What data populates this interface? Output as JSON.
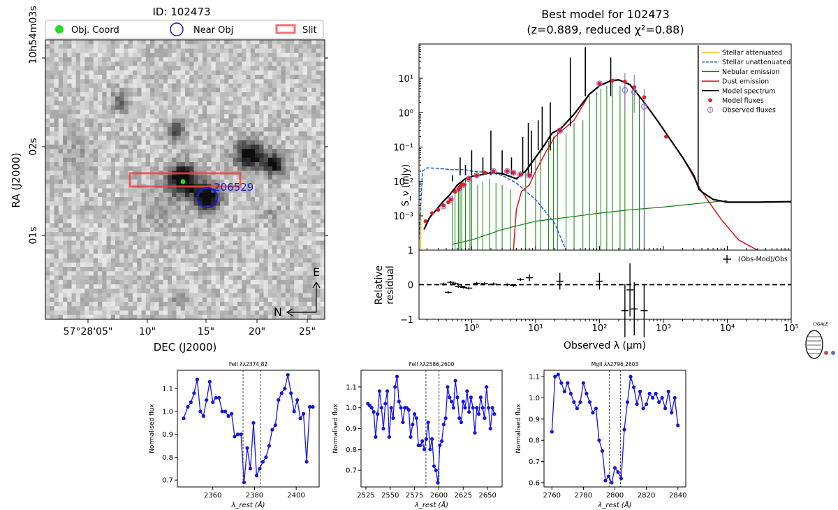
{
  "chart_data": [
    {
      "type": "image",
      "title": "ID: 102473",
      "xlabel": "DEC (J2000)",
      "ylabel": "RA (J2000)",
      "x_ticks": [
        "57°28'05\"",
        "10\"",
        "15\"",
        "20\"",
        "25\""
      ],
      "y_ticks": [
        "10h54m03s",
        "02s",
        "01s"
      ],
      "legend": [
        {
          "label": "Obj. Coord",
          "marker": "filled-circle",
          "color": "#00dd00"
        },
        {
          "label": "Near Obj",
          "marker": "open-circle",
          "color": "#1010d0"
        },
        {
          "label": "Slit",
          "marker": "rectangle",
          "color": "#f05050"
        }
      ],
      "near_object_label": "206529",
      "compass": {
        "east": "E",
        "north": "N"
      },
      "colormap": "gray_r"
    },
    {
      "type": "line",
      "title": "Best model for 102473",
      "subtitle": "(z=0.889, reduced χ²=0.88)",
      "xlabel": "Observed λ (μm)",
      "ylabel": "S_ν (mJy)",
      "xscale": "log",
      "yscale": "log",
      "xlim": [
        0.15,
        100000
      ],
      "ylim": [
        0.0001,
        90
      ],
      "x_ticks": [
        "10⁰",
        "10¹",
        "10²",
        "10³",
        "10⁴",
        "10⁵"
      ],
      "y_ticks": [
        "10⁻³",
        "10⁻²",
        "10⁻¹",
        "10⁰",
        "10¹"
      ],
      "legend_position": "top-right",
      "legend": [
        {
          "label": "Stellar attenuated",
          "color": "#f5c000",
          "style": "solid"
        },
        {
          "label": "Stellar unattenuated",
          "color": "#2060d0",
          "style": "dashed"
        },
        {
          "label": "Nebular emission",
          "color": "#108010",
          "style": "solid"
        },
        {
          "label": "Dust emission",
          "color": "#e01010",
          "style": "solid"
        },
        {
          "label": "Model spectrum",
          "color": "#000000",
          "style": "solid"
        },
        {
          "label": "Model fluxes",
          "color": "#e02020",
          "style": "point"
        },
        {
          "label": "Observed fluxes",
          "color": "#a070d0",
          "style": "errorbar"
        }
      ],
      "series": [
        {
          "name": "Model spectrum",
          "x": [
            0.18,
            0.22,
            0.28,
            0.35,
            0.45,
            0.6,
            0.8,
            1.0,
            1.5,
            2.0,
            3.0,
            4.0,
            5.0,
            7.0,
            10,
            14,
            18,
            25,
            40,
            70,
            100,
            150,
            200,
            300,
            500,
            800,
            1200,
            2000,
            3000,
            3400,
            3600,
            4000,
            6000,
            10000,
            30000,
            100000
          ],
          "y": [
            0.0004,
            0.0009,
            0.0015,
            0.0025,
            0.004,
            0.008,
            0.012,
            0.014,
            0.016,
            0.018,
            0.017,
            0.014,
            0.012,
            0.02,
            0.05,
            0.12,
            0.25,
            0.35,
            0.9,
            3.5,
            6,
            8.5,
            9,
            6.5,
            2,
            0.6,
            0.2,
            0.05,
            0.015,
            0.008,
            0.006,
            0.005,
            0.003,
            0.0025,
            0.0025,
            0.0026
          ]
        },
        {
          "name": "Stellar unattenuated",
          "x": [
            0.15,
            0.17,
            0.2,
            0.3,
            0.5,
            0.8,
            1.0,
            2.0,
            3.0,
            5.0,
            10,
            20,
            30
          ],
          "y": [
            0.0002,
            0.02,
            0.025,
            0.024,
            0.022,
            0.022,
            0.02,
            0.018,
            0.015,
            0.009,
            0.003,
            0.0006,
            0.0001
          ]
        },
        {
          "name": "Dust emission",
          "x": [
            4.5,
            5,
            6,
            8,
            10,
            15,
            20,
            40,
            70,
            100,
            150,
            200,
            300,
            500,
            800,
            1200,
            2000,
            4000,
            8000,
            15000,
            30000
          ],
          "y": [
            0.0001,
            0.0015,
            0.005,
            0.008,
            0.02,
            0.08,
            0.2,
            0.6,
            3.5,
            6,
            8.5,
            9,
            6.5,
            2,
            0.6,
            0.2,
            0.05,
            0.005,
            0.0008,
            0.0002,
            0.0001
          ]
        },
        {
          "name": "Nebular emission",
          "x": [
            0.5,
            1,
            3,
            10,
            30,
            100,
            300,
            1000,
            10000
          ],
          "y": [
            0.00015,
            0.0002,
            0.0004,
            0.0007,
            0.0009,
            0.0012,
            0.0015,
            0.0018,
            0.0028
          ]
        },
        {
          "name": "Model fluxes",
          "x": [
            0.19,
            0.24,
            0.3,
            0.36,
            0.43,
            0.47,
            0.55,
            0.62,
            0.66,
            0.7,
            0.75,
            0.9,
            1.2,
            1.6,
            2.2,
            3.6,
            4.5,
            5.8,
            8.0,
            24,
            100,
            160,
            250,
            350,
            500,
            1100
          ],
          "y": [
            0.0007,
            0.0012,
            0.0015,
            0.002,
            0.0025,
            0.003,
            0.005,
            0.006,
            0.007,
            0.008,
            0.008,
            0.012,
            0.015,
            0.018,
            0.02,
            0.02,
            0.018,
            0.016,
            0.015,
            0.3,
            7,
            8.5,
            8,
            5.5,
            2.8,
            0.2
          ]
        },
        {
          "name": "Observed fluxes",
          "x": [
            0.36,
            0.47,
            0.62,
            0.75,
            0.9,
            1.2,
            2.2,
            3.6,
            4.5,
            5.8,
            8.0,
            24,
            100,
            250,
            350,
            500
          ],
          "y": [
            0.0019,
            0.003,
            0.006,
            0.008,
            0.012,
            0.015,
            0.02,
            0.02,
            0.018,
            0.016,
            0.015,
            0.3,
            7,
            4.5,
            4,
            1.5
          ]
        }
      ]
    },
    {
      "type": "scatter",
      "xlabel": "Observed λ (μm)",
      "ylabel": "Relative residual",
      "xscale": "log",
      "xlim": [
        0.15,
        100000
      ],
      "ylim": [
        -1,
        1
      ],
      "y_ticks": [
        "1",
        "0",
        "−1"
      ],
      "legend": [
        {
          "label": "(Obs-Mod)/Obs",
          "marker": "+"
        }
      ],
      "series": [
        {
          "name": "(Obs-Mod)/Obs",
          "x": [
            0.36,
            0.43,
            0.47,
            0.55,
            0.62,
            0.7,
            0.75,
            0.9,
            1.2,
            1.6,
            2.2,
            3.6,
            4.5,
            5.8,
            8.0,
            24,
            100,
            250,
            300,
            350,
            500
          ],
          "y": [
            0.02,
            -0.22,
            0.07,
            0.03,
            -0.05,
            -0.05,
            -0.08,
            -0.1,
            0.04,
            0.03,
            0.02,
            0.0,
            -0.02,
            0.15,
            0.2,
            0.1,
            0.1,
            -0.75,
            -0.15,
            -0.7,
            -0.75
          ]
        }
      ]
    },
    {
      "type": "line",
      "title": "FeII λλ2374,82",
      "xlabel": "λ_rest (Å)",
      "ylabel": "Normalised flux",
      "xlim": [
        2343,
        2411
      ],
      "ylim": [
        0.67,
        1.18
      ],
      "x_ticks": [
        "2360",
        "2380",
        "2400"
      ],
      "y_ticks": [
        "0.7",
        "0.8",
        "0.9",
        "1.0",
        "1.1"
      ],
      "vlines": [
        2374.5,
        2382.8
      ],
      "series": [
        {
          "name": "Normalised flux",
          "x": [
            2346,
            2348,
            2349.5,
            2351,
            2352.5,
            2354,
            2355.5,
            2357,
            2358.5,
            2360,
            2361.5,
            2363,
            2364.5,
            2366,
            2367.5,
            2369,
            2370.5,
            2372,
            2373.5,
            2375,
            2376.5,
            2378,
            2379.5,
            2381,
            2382.5,
            2384,
            2385.5,
            2387,
            2388.5,
            2390,
            2391.5,
            2393,
            2394.5,
            2396,
            2397.5,
            2399,
            2400.5,
            2402,
            2403.5,
            2405,
            2406.5,
            2408
          ],
          "y": [
            0.97,
            1.02,
            1.04,
            1.08,
            1.14,
            1.0,
            0.98,
            1.05,
            1.13,
            1.04,
            1.06,
            1.06,
            1.0,
            1.0,
            0.98,
            0.99,
            0.89,
            0.9,
            0.9,
            0.69,
            0.84,
            0.75,
            0.95,
            0.72,
            0.75,
            0.78,
            0.8,
            0.85,
            0.92,
            0.94,
            1.05,
            1.08,
            1.1,
            1.16,
            1.08,
            1.0,
            1.05,
            0.97,
            0.99,
            0.78,
            1.02,
            1.02
          ]
        }
      ]
    },
    {
      "type": "line",
      "title": "FeII λλ2586,2600",
      "xlabel": "λ_rest (Å)",
      "ylabel": "Normalised flux",
      "xlim": [
        2520,
        2665
      ],
      "ylim": [
        0.62,
        1.18
      ],
      "x_ticks": [
        "2525",
        "2550",
        "2575",
        "2600",
        "2625",
        "2650"
      ],
      "y_ticks": [
        "0.7",
        "0.8",
        "0.9",
        "1.0",
        "1.1"
      ],
      "vlines": [
        2586.7,
        2600.2
      ],
      "series": [
        {
          "name": "Normalised flux",
          "x": [
            2527,
            2529,
            2531,
            2533,
            2535,
            2537,
            2539,
            2541,
            2543,
            2545,
            2547,
            2549,
            2551,
            2553,
            2555,
            2557,
            2559,
            2561,
            2563,
            2565,
            2567,
            2569,
            2571,
            2573,
            2575,
            2577,
            2579,
            2581,
            2583,
            2585,
            2587,
            2589,
            2591,
            2593,
            2595,
            2597,
            2599,
            2601,
            2603,
            2605,
            2607,
            2609,
            2611,
            2613,
            2615,
            2617,
            2619,
            2621,
            2623,
            2625,
            2627,
            2629,
            2631,
            2633,
            2635,
            2637,
            2639,
            2641,
            2643,
            2645,
            2647,
            2649,
            2651,
            2653,
            2655,
            2657
          ],
          "y": [
            1.02,
            1.01,
            1.0,
            0.98,
            0.86,
            0.97,
            1.08,
            1.0,
            0.9,
            1.02,
            1.08,
            0.86,
            1.0,
            0.95,
            1.1,
            1.15,
            1.03,
            1.0,
            0.93,
            1.0,
            1.0,
            0.99,
            0.86,
            0.92,
            0.97,
            0.95,
            0.82,
            0.82,
            0.84,
            0.8,
            0.85,
            0.93,
            0.8,
            0.85,
            0.72,
            0.7,
            0.64,
            0.82,
            0.84,
            0.92,
            0.95,
            1.1,
            1.05,
            1.03,
            1.0,
            1.13,
            1.05,
            0.95,
            0.93,
            1.03,
            1.0,
            1.08,
            0.98,
            1.05,
            1.0,
            0.88,
            1.0,
            0.97,
            1.05,
            1.0,
            0.95,
            1.1,
            1.0,
            0.9,
            1.0,
            0.97
          ]
        }
      ]
    },
    {
      "type": "line",
      "title": "MgII λλ2796,2803",
      "xlabel": "λ_rest (Å)",
      "ylabel": "Normalised flux",
      "xlim": [
        2755,
        2845
      ],
      "ylim": [
        0.58,
        1.13
      ],
      "x_ticks": [
        "2760",
        "2780",
        "2800",
        "2820",
        "2840"
      ],
      "y_ticks": [
        "0.6",
        "0.7",
        "0.8",
        "0.9",
        "1.0",
        "1.1"
      ],
      "vlines": [
        2796.4,
        2803.5
      ],
      "series": [
        {
          "name": "Normalised flux",
          "x": [
            2760,
            2762,
            2764,
            2766,
            2768,
            2770,
            2772,
            2774,
            2776,
            2778,
            2780,
            2782,
            2784,
            2786,
            2788,
            2790,
            2792,
            2794,
            2796,
            2798,
            2800,
            2802,
            2804,
            2806,
            2808,
            2810,
            2812,
            2814,
            2816,
            2818,
            2820,
            2822,
            2824,
            2826,
            2828,
            2830,
            2832,
            2834,
            2836,
            2838,
            2840
          ],
          "y": [
            0.84,
            1.1,
            1.11,
            1.07,
            1.03,
            1.07,
            1.02,
            0.98,
            0.95,
            0.98,
            1.07,
            1.02,
            0.98,
            0.93,
            0.95,
            0.8,
            0.75,
            0.61,
            0.63,
            0.6,
            0.67,
            0.65,
            0.62,
            0.85,
            0.98,
            1.1,
            1.05,
            0.97,
            1.03,
            0.95,
            0.97,
            1.02,
            1.0,
            1.02,
            0.98,
            1.0,
            0.95,
            1.03,
            0.93,
            1.0,
            0.87
          ]
        }
      ]
    }
  ]
}
